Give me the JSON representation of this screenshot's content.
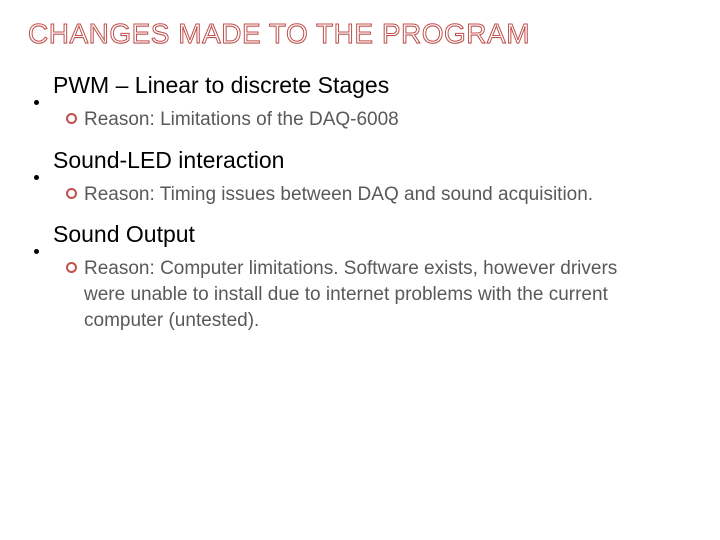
{
  "colors": {
    "accent": "#c0504d",
    "body_text": "#595959",
    "heading_text": "#000000",
    "background": "#ffffff"
  },
  "typography": {
    "title_fontfamily": "Trebuchet MS",
    "body_fontfamily": "Verdana",
    "title_fontsize_pt": 28,
    "item_title_fontsize_pt": 23,
    "sub_fontsize_pt": 19
  },
  "title": "CHANGES MADE TO THE PROGRAM",
  "items": [
    {
      "title": "PWM – Linear to discrete Stages",
      "subs": [
        {
          "label": "Reason:",
          "text": "Limitations of the DAQ-6008"
        }
      ]
    },
    {
      "title": "Sound-LED interaction",
      "subs": [
        {
          "label": "Reason:",
          "text": "Timing issues between DAQ and sound acquisition."
        }
      ]
    },
    {
      "title": "Sound Output",
      "subs": [
        {
          "label": "Reason:",
          "text": "Computer limitations.  Software exists, however drivers were unable to install due to internet problems with the current computer (untested)."
        }
      ]
    }
  ]
}
